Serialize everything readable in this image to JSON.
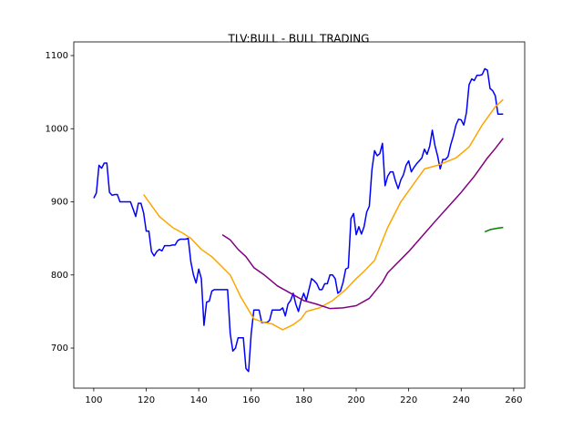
{
  "chart_data": {
    "type": "line",
    "title": "TLV:BULL - BULL TRADING",
    "xlim": [
      92.4,
      264.2
    ],
    "ylim": [
      645.2,
      1118.7
    ],
    "xticks": [
      100,
      120,
      140,
      160,
      180,
      200,
      220,
      240,
      260
    ],
    "yticks": [
      700,
      800,
      900,
      1000,
      1100
    ],
    "series": [
      {
        "color": "blue",
        "x": [
          100,
          101,
          102,
          103,
          104,
          105,
          106,
          107,
          108,
          109,
          110,
          111,
          112,
          113,
          114,
          115,
          116,
          117,
          118,
          119,
          120,
          121,
          122,
          123,
          124,
          125,
          126,
          127,
          128,
          129,
          130,
          131,
          132,
          133,
          134,
          135,
          136,
          137,
          138,
          139,
          140,
          141,
          142,
          143,
          144,
          145,
          146,
          147,
          148,
          149,
          150,
          151,
          152,
          153,
          154,
          155,
          156,
          157,
          158,
          159,
          160,
          161,
          162,
          163,
          164,
          165,
          166,
          167,
          168,
          169,
          170,
          171,
          172,
          173,
          174,
          175,
          176,
          177,
          178,
          179,
          180,
          181,
          182,
          183,
          184,
          185,
          186,
          187,
          188,
          189,
          190,
          191,
          192,
          193,
          194,
          195,
          196,
          197,
          198,
          199,
          200,
          201,
          202,
          203,
          204,
          205,
          206,
          207,
          208,
          209,
          210,
          211,
          212,
          213,
          214,
          215,
          216,
          217,
          218,
          219,
          220,
          221,
          222,
          223,
          224,
          225,
          226,
          227,
          228,
          229,
          230,
          231,
          232,
          233,
          234,
          235,
          236,
          237,
          238,
          239,
          240,
          241,
          242,
          243,
          244,
          245,
          246,
          247,
          248,
          249,
          250,
          251,
          252,
          253,
          254,
          255,
          256
        ],
        "values": [
          905,
          912,
          950,
          946,
          953,
          953,
          913,
          909,
          910,
          910,
          900,
          900,
          900,
          900,
          900,
          890,
          880,
          898,
          898,
          885,
          860,
          860,
          832,
          826,
          832,
          835,
          833,
          840,
          840,
          840,
          841,
          841,
          847,
          849,
          849,
          849,
          850,
          818,
          800,
          789,
          808,
          795,
          731,
          763,
          764,
          778,
          780,
          780,
          780,
          780,
          780,
          780,
          720,
          696,
          700,
          714,
          714,
          714,
          672,
          668,
          720,
          752,
          752,
          752,
          735,
          735,
          735,
          738,
          752,
          752,
          752,
          752,
          755,
          744,
          760,
          765,
          775,
          760,
          750,
          765,
          775,
          765,
          780,
          795,
          792,
          788,
          780,
          780,
          788,
          788,
          800,
          800,
          795,
          775,
          778,
          790,
          808,
          810,
          877,
          884,
          855,
          866,
          856,
          866,
          886,
          894,
          944,
          970,
          963,
          966,
          980,
          922,
          935,
          941,
          941,
          928,
          918,
          930,
          937,
          950,
          956,
          941,
          947,
          952,
          956,
          960,
          972,
          965,
          976,
          998,
          977,
          963,
          945,
          958,
          958,
          962,
          978,
          990,
          1005,
          1013,
          1012,
          1005,
          1022,
          1060,
          1068,
          1066,
          1073,
          1073,
          1074,
          1082,
          1080,
          1055,
          1052,
          1045,
          1020,
          1020,
          1020
        ]
      },
      {
        "color": "orange",
        "x": [
          119,
          125,
          130,
          134,
          137,
          141,
          145,
          152,
          156,
          161,
          165,
          168,
          172,
          176,
          179,
          181,
          186,
          191,
          196,
          200,
          203,
          207,
          212,
          217,
          222,
          226,
          231,
          238,
          243,
          248,
          253,
          256
        ],
        "values": [
          910,
          880,
          865,
          857,
          850,
          835,
          825,
          800,
          770,
          740,
          735,
          733,
          725,
          732,
          740,
          750,
          755,
          765,
          780,
          795,
          805,
          820,
          865,
          900,
          925,
          945,
          950,
          960,
          975,
          1005,
          1030,
          1040
        ]
      },
      {
        "color": "purple",
        "x": [
          149,
          152,
          155,
          158,
          161,
          165,
          170,
          175,
          180,
          185,
          190,
          195,
          200,
          205,
          210,
          212,
          220,
          230,
          235,
          240,
          245,
          250,
          253,
          256
        ],
        "values": [
          855,
          848,
          835,
          825,
          810,
          800,
          785,
          775,
          765,
          760,
          754,
          755,
          758,
          768,
          790,
          803,
          832,
          873,
          893,
          913,
          935,
          960,
          973,
          987
        ]
      },
      {
        "color": "green",
        "x": [
          249,
          251,
          254,
          256
        ],
        "values": [
          859,
          862,
          864,
          865
        ]
      }
    ]
  }
}
